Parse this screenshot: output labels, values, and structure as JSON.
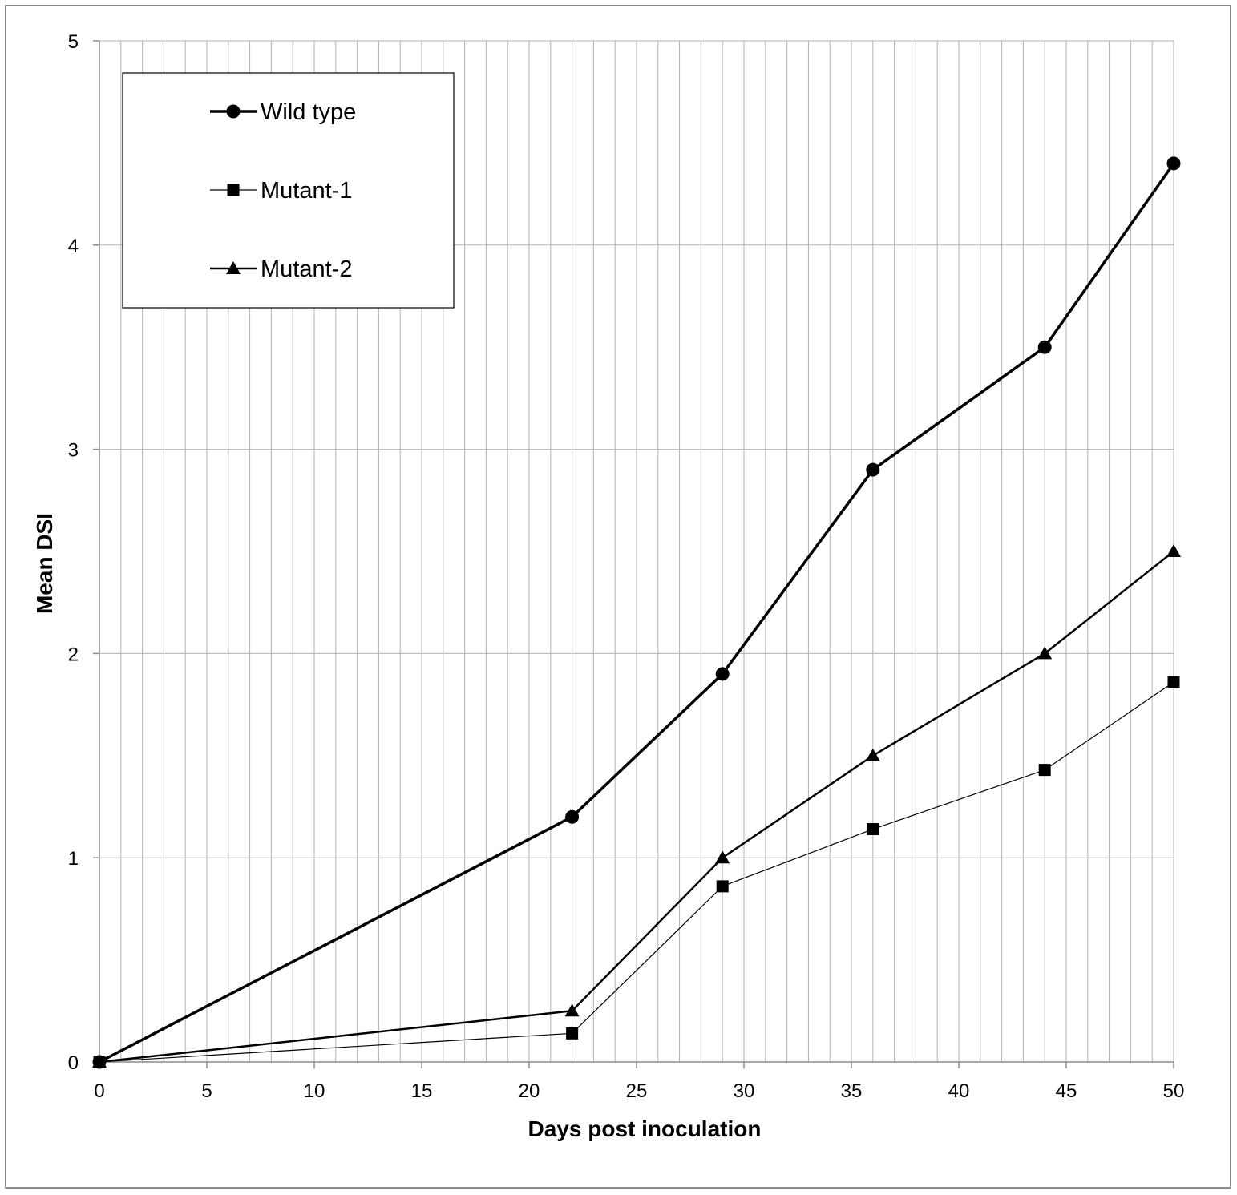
{
  "chart_data": {
    "type": "line",
    "xlabel": "Days post inoculation",
    "ylabel": "Mean DSI",
    "xlim": [
      0,
      50
    ],
    "ylim": [
      0,
      5
    ],
    "x_major_step": 5,
    "x_minor_step": 1,
    "y_major_step": 1,
    "grid": "on",
    "legend_position": "top-left",
    "x_ticks": [
      "0",
      "5",
      "10",
      "15",
      "20",
      "25",
      "30",
      "35",
      "40",
      "45",
      "50"
    ],
    "y_ticks": [
      "0",
      "1",
      "2",
      "3",
      "4",
      "5"
    ],
    "x": [
      0,
      22,
      29,
      36,
      44,
      50
    ],
    "series": [
      {
        "name": "Wild type",
        "marker": "circle",
        "line": "thick",
        "values": [
          0,
          1.2,
          1.9,
          2.9,
          3.5,
          4.4
        ]
      },
      {
        "name": "Mutant-1",
        "marker": "square",
        "line": "thin",
        "values": [
          0,
          0.14,
          0.86,
          1.14,
          1.43,
          1.86
        ]
      },
      {
        "name": "Mutant-2",
        "marker": "triangle",
        "line": "medium",
        "values": [
          0,
          0.25,
          1.0,
          1.5,
          2.0,
          2.5
        ]
      }
    ],
    "colors": {
      "line": "#000000",
      "grid": "#b3b3b3",
      "frame": "#8c8c8c"
    }
  }
}
